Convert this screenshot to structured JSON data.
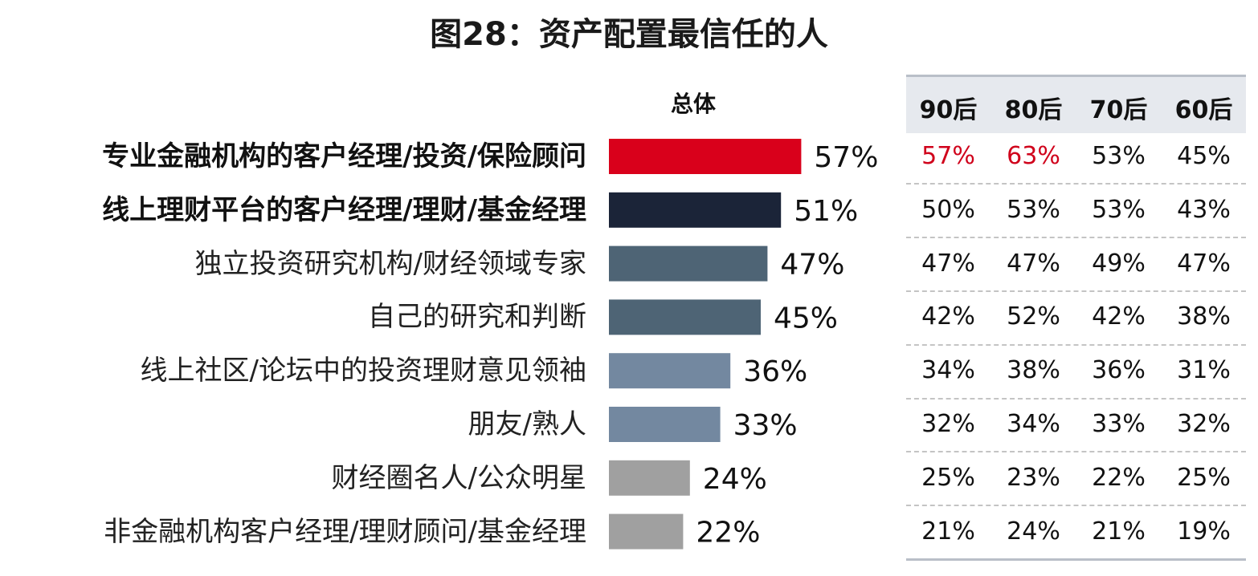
{
  "title": "图28：资产配置最信任的人",
  "overall_header": "总体",
  "table_headers": [
    "90后",
    "80后",
    "70后",
    "60后"
  ],
  "colors": {
    "highlight_red": "#d9001b",
    "navy": "#1b2438",
    "slate": "#4e6475",
    "steel": "#7388a0",
    "gray": "#a0a0a0",
    "table_red_text": "#d0021b"
  },
  "chart_data": {
    "type": "bar",
    "orientation": "horizontal",
    "title": "图28：资产配置最信任的人",
    "series_name": "总体",
    "categories": [
      "专业金融机构的客户经理/投资/保险顾问",
      "线上理财平台的客户经理/理财/基金经理",
      "独立投资研究机构/财经领域专家",
      "自己的研究和判断",
      "线上社区/论坛中的投资理财意见领袖",
      "朋友/熟人",
      "财经圈名人/公众明星",
      "非金融机构客户经理/理财顾问/基金经理"
    ],
    "values": [
      57,
      51,
      47,
      45,
      36,
      33,
      24,
      22
    ],
    "value_labels": [
      "57%",
      "51%",
      "47%",
      "45%",
      "36%",
      "33%",
      "24%",
      "22%"
    ],
    "bar_colors": [
      "#d9001b",
      "#1b2438",
      "#4e6475",
      "#4e6475",
      "#7388a0",
      "#7388a0",
      "#a0a0a0",
      "#a0a0a0"
    ],
    "bold_categories": [
      true,
      true,
      false,
      false,
      false,
      false,
      false,
      false
    ],
    "unit": "%",
    "xlim": [
      0,
      100
    ]
  },
  "table": {
    "columns": [
      "90后",
      "80后",
      "70后",
      "60后"
    ],
    "rows": [
      [
        "57%",
        "63%",
        "53%",
        "45%"
      ],
      [
        "50%",
        "53%",
        "53%",
        "43%"
      ],
      [
        "47%",
        "47%",
        "49%",
        "47%"
      ],
      [
        "42%",
        "52%",
        "42%",
        "38%"
      ],
      [
        "34%",
        "38%",
        "36%",
        "31%"
      ],
      [
        "32%",
        "34%",
        "33%",
        "32%"
      ],
      [
        "25%",
        "23%",
        "22%",
        "25%"
      ],
      [
        "21%",
        "24%",
        "21%",
        "19%"
      ]
    ],
    "red_cells": [
      [
        0,
        0
      ],
      [
        0,
        1
      ]
    ]
  }
}
